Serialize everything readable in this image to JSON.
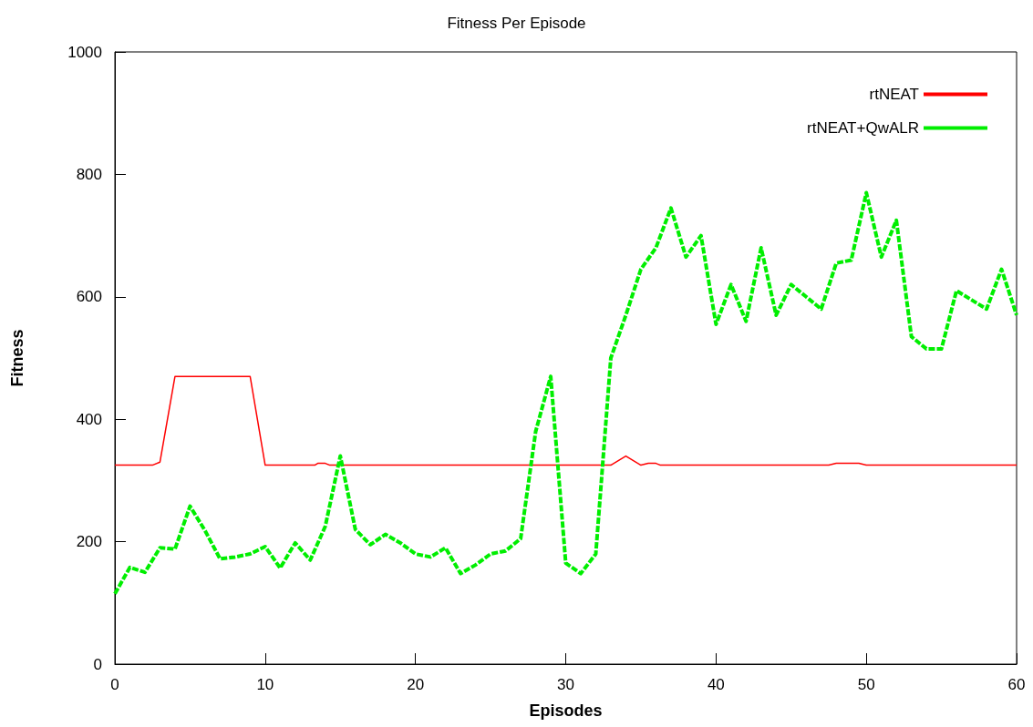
{
  "chart_data": {
    "type": "line",
    "title": "Fitness Per Episode",
    "xlabel": "Episodes",
    "ylabel": "Fitness",
    "xlim": [
      0,
      60
    ],
    "xticks": [
      0,
      10,
      20,
      30,
      40,
      50,
      60
    ],
    "ylim": [
      0,
      1000
    ],
    "yticks": [
      0,
      200,
      400,
      600,
      800,
      1000
    ],
    "grid": false,
    "legend": "top right",
    "marker": "none",
    "series": [
      {
        "name": "rtNEAT",
        "color": "#ff0000",
        "line_style": "solid",
        "x": [
          0,
          2.5,
          3,
          4,
          9,
          10,
          13.3,
          13.5,
          14,
          14.3,
          33,
          34,
          35,
          35.5,
          36,
          36.3,
          47.5,
          48,
          49.5,
          50,
          60
        ],
        "values": [
          325,
          325,
          330,
          470,
          470,
          325,
          325,
          328,
          328,
          325,
          325,
          340,
          325,
          328,
          328,
          325,
          325,
          328,
          328,
          325,
          325
        ]
      },
      {
        "name": "rtNEAT+QwALR",
        "color": "#00ee00",
        "line_style": "dashed",
        "x": [
          0,
          1,
          2,
          3,
          4,
          5,
          6,
          7,
          8,
          9,
          10,
          11,
          12,
          13,
          14,
          15,
          16,
          17,
          18,
          19,
          20,
          21,
          22,
          23,
          24,
          25,
          26,
          27,
          28,
          29,
          30,
          31,
          32,
          33,
          34,
          35,
          36,
          37,
          38,
          39,
          40,
          41,
          42,
          43,
          44,
          45,
          46,
          47,
          48,
          49,
          50,
          51,
          52,
          53,
          54,
          55,
          56,
          57,
          58,
          59,
          60
        ],
        "values": [
          115,
          158,
          150,
          190,
          188,
          258,
          218,
          172,
          175,
          180,
          192,
          157,
          198,
          170,
          225,
          340,
          220,
          195,
          212,
          198,
          180,
          175,
          190,
          148,
          162,
          180,
          185,
          205,
          380,
          470,
          165,
          148,
          180,
          500,
          570,
          645,
          680,
          745,
          665,
          700,
          555,
          620,
          560,
          680,
          570,
          620,
          600,
          580,
          655,
          660,
          770,
          665,
          725,
          535,
          515,
          515,
          610,
          595,
          580,
          645,
          570
        ]
      }
    ]
  }
}
